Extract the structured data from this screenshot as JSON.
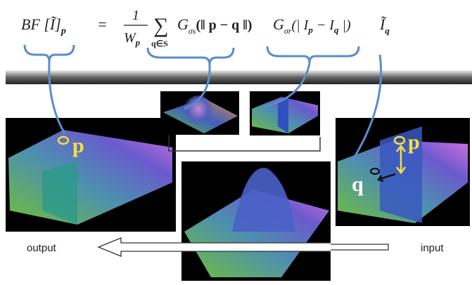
{
  "formula": {
    "lhs": "BF [Ĩ]",
    "lhs_sub": "p",
    "equals": "=",
    "numerator": "1",
    "denominator": "W",
    "denominator_sub": "p",
    "sum": "∑",
    "sum_sub": "q∈S",
    "spatial": "G",
    "spatial_sub": "σs",
    "spatial_arg": "(‖ p − q ‖)",
    "range": "G",
    "range_sub": "σr",
    "range_open": "(| I",
    "range_sub1": "p",
    "range_mid": " − I",
    "range_sub2": "q",
    "range_close": " |)",
    "pixel": "Ĩ",
    "pixel_sub": "q"
  },
  "labels": {
    "output_p": "p",
    "input_p": "p",
    "input_q": "q",
    "output": "output",
    "input": "input"
  }
}
